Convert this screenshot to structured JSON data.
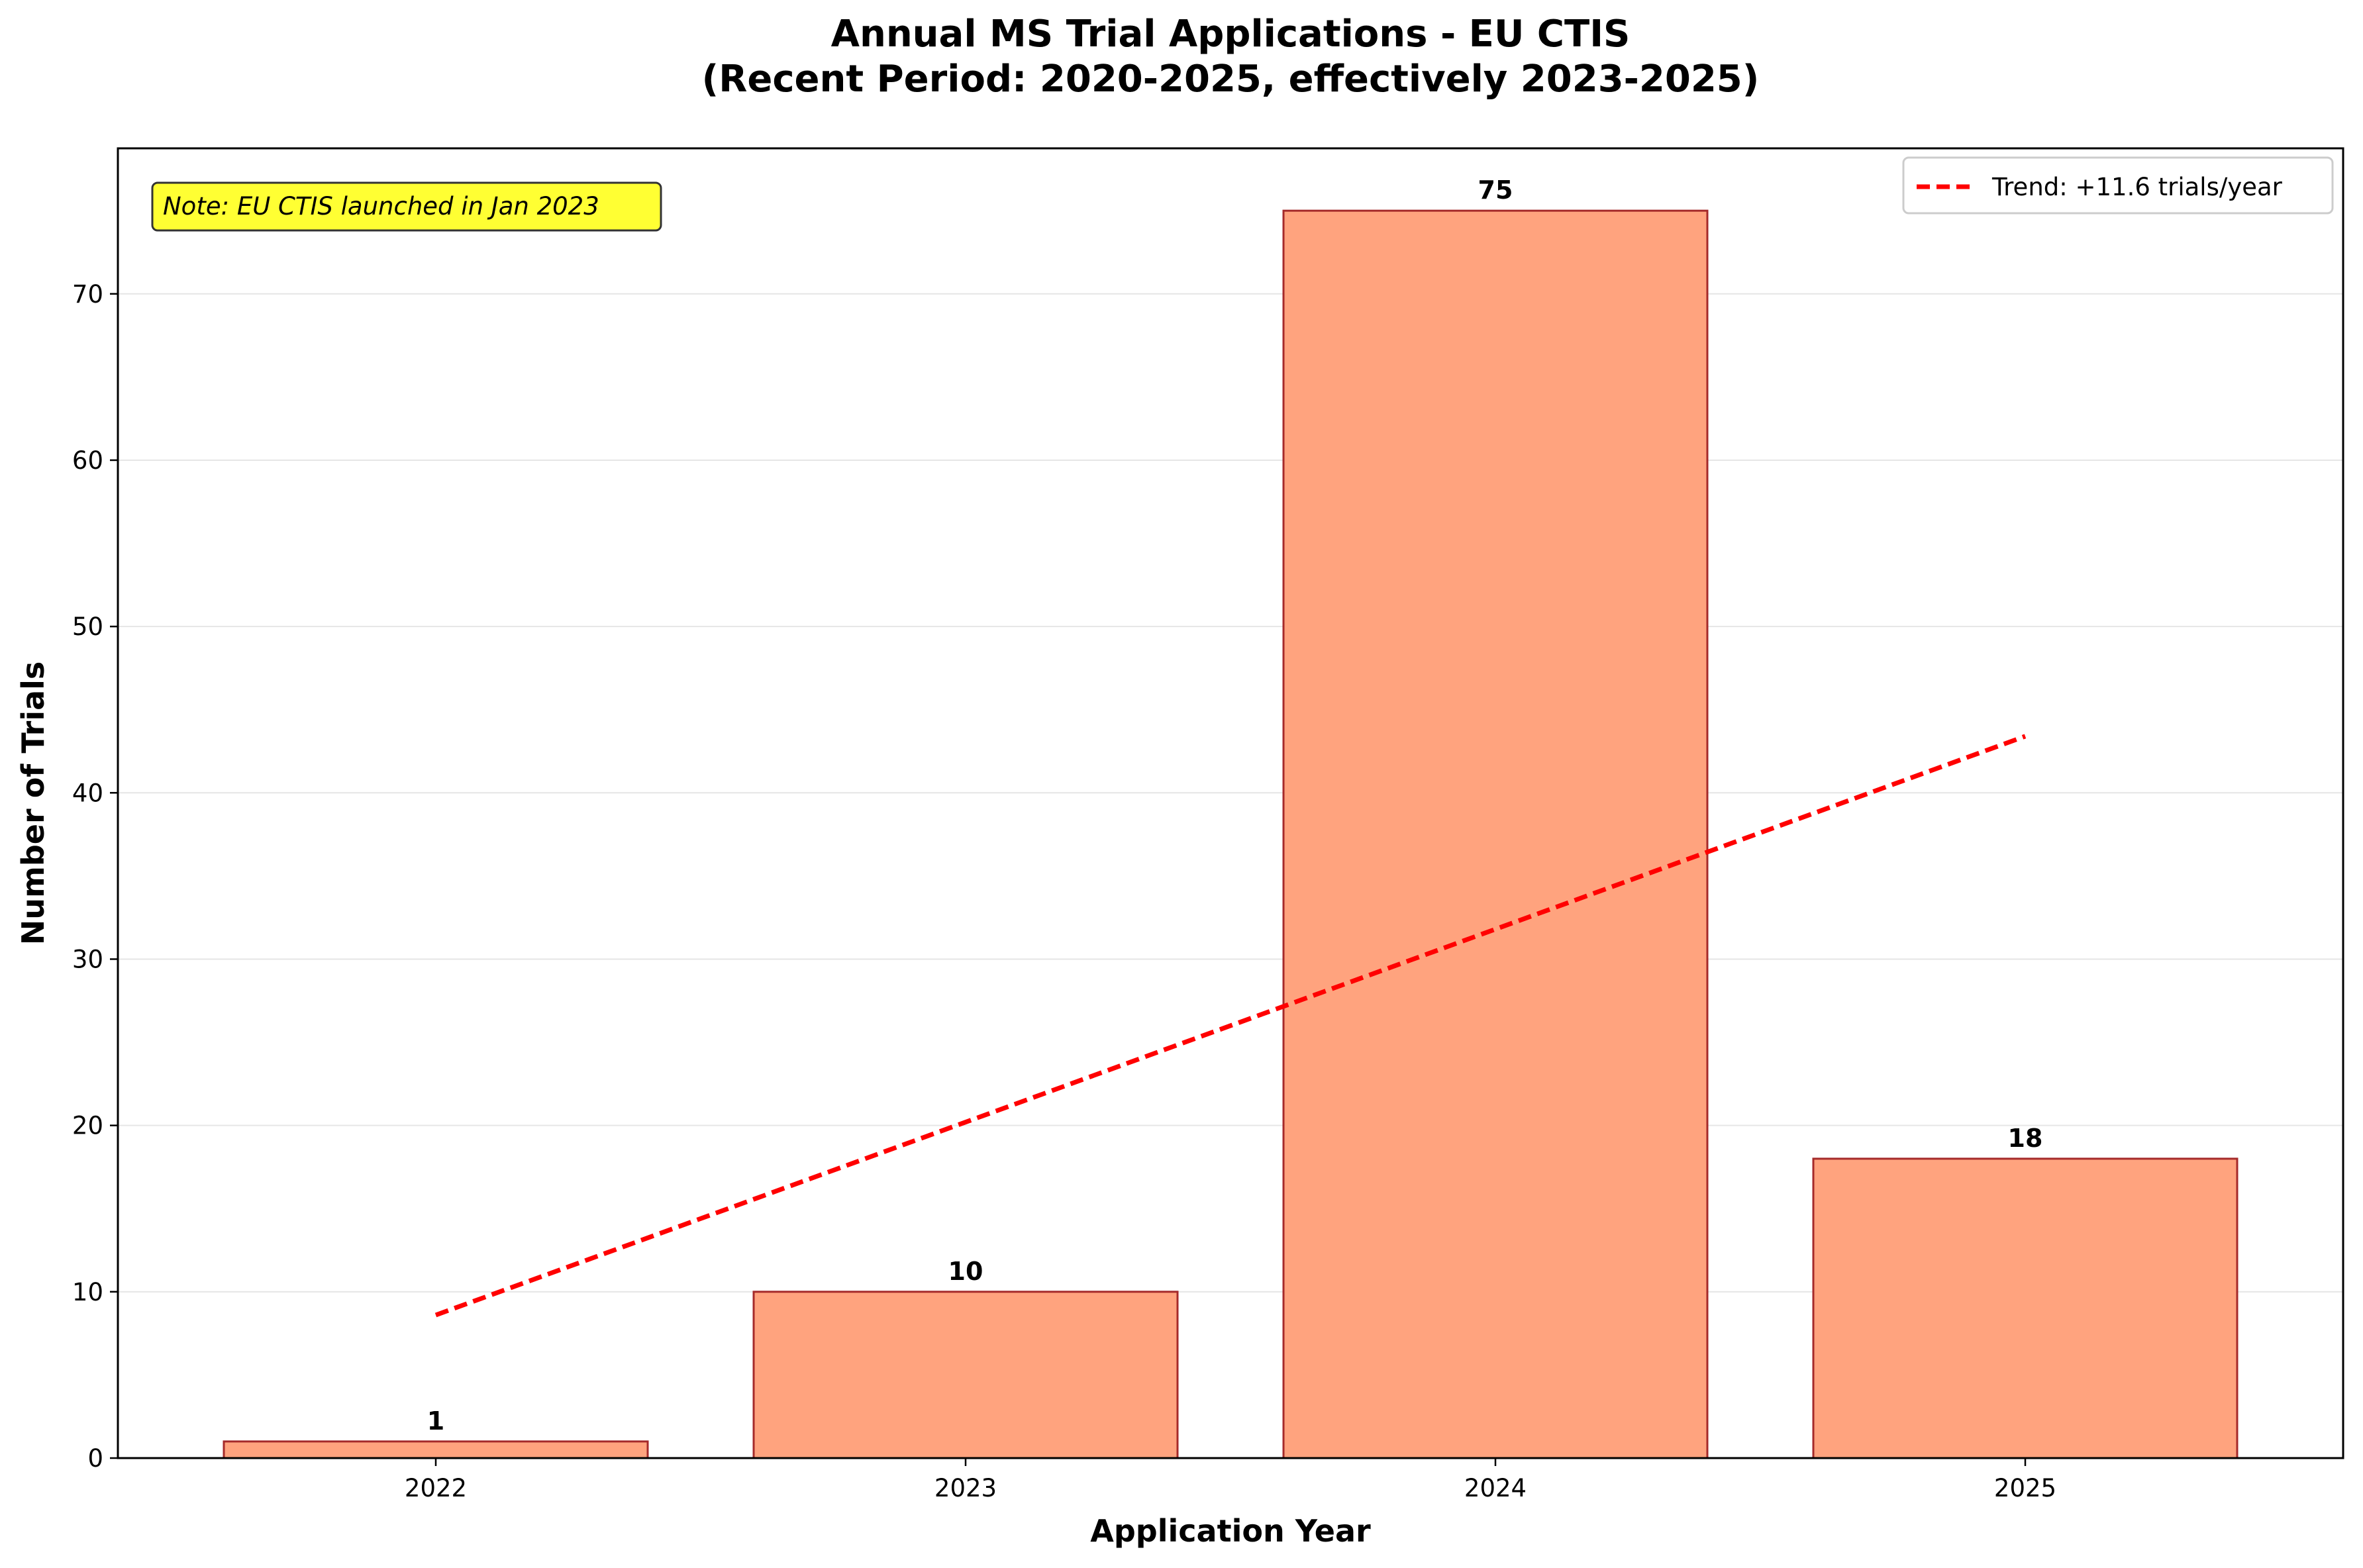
{
  "chart_data": {
    "type": "bar",
    "title_line1": "Annual MS Trial Applications - EU CTIS",
    "title_line2": "(Recent Period: 2020-2025, effectively 2023-2025)",
    "xlabel": "Application Year",
    "ylabel": "Number of Trials",
    "categories": [
      "2022",
      "2023",
      "2024",
      "2025"
    ],
    "values": [
      1,
      10,
      75,
      18
    ],
    "ylim": [
      0,
      78.75
    ],
    "yticks": [
      0,
      10,
      20,
      30,
      40,
      50,
      60,
      70
    ],
    "grid": "y-only",
    "bar_color": "#ffa07a",
    "bar_edge_color": "#a52a2a",
    "trend": {
      "label": "Trend: +11.6 trials/year",
      "start": 8.6,
      "end": 43.4,
      "color": "#ff0000",
      "style": "dashed"
    },
    "legend_position": "top-right",
    "annotation": {
      "text": "Note: EU CTIS launched in Jan 2023",
      "background": "#ffff33"
    }
  }
}
